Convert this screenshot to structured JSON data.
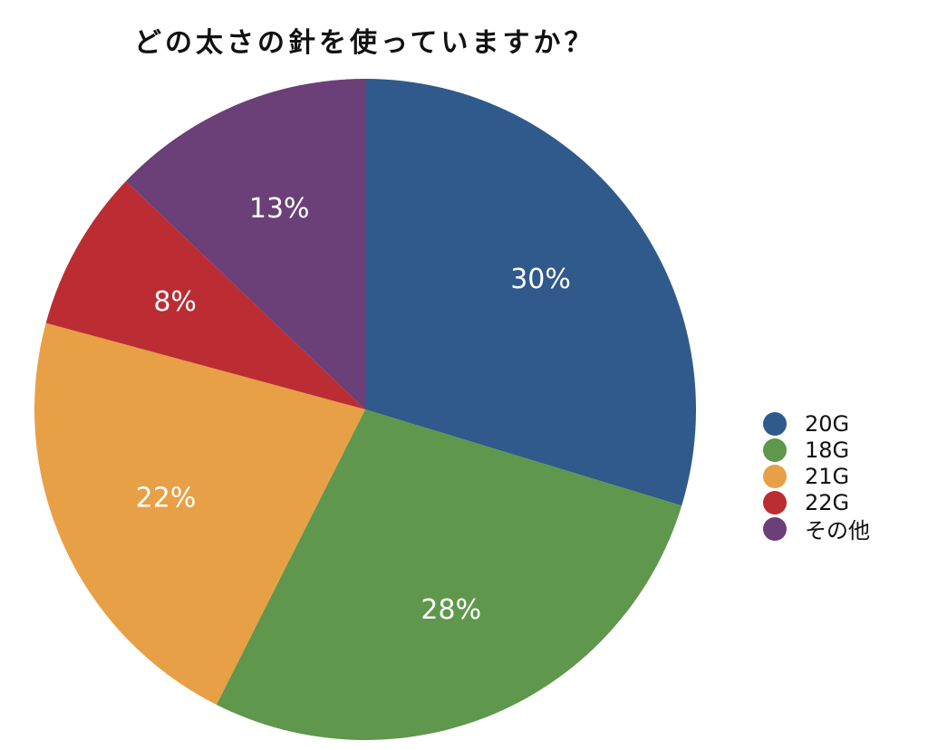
{
  "chart_data": {
    "type": "pie",
    "title": "どの太さの針を使っていますか？",
    "start": "top",
    "direction": "clockwise",
    "legend_position": "right",
    "slices": [
      {
        "name": "20G",
        "value": 30,
        "label": "30%",
        "color": "#2f5a8b"
      },
      {
        "name": "18G",
        "value": 28,
        "label": "28%",
        "color": "#5f974c"
      },
      {
        "name": "21G",
        "value": 22,
        "label": "22%",
        "color": "#e7a045"
      },
      {
        "name": "22G",
        "value": 8,
        "label": "8%",
        "color": "#bb2d33"
      },
      {
        "name": "その他",
        "value": 13,
        "label": "13%",
        "color": "#6b3f77"
      }
    ]
  }
}
